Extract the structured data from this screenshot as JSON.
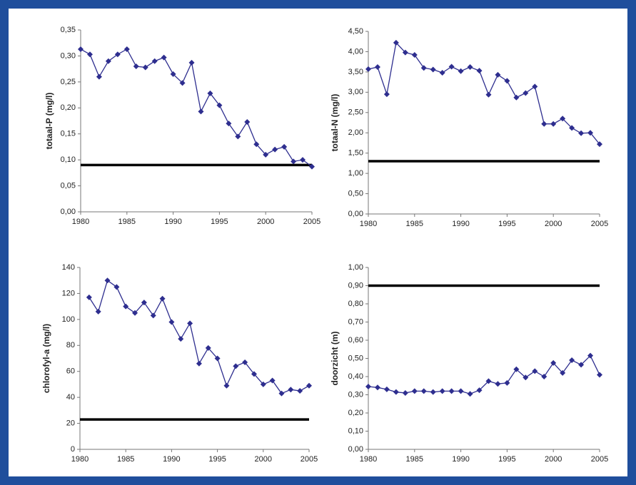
{
  "chart_data": [
    {
      "type": "line",
      "ylabel": "totaal-P (mg/l)",
      "x": [
        1980,
        1981,
        1982,
        1983,
        1984,
        1985,
        1986,
        1987,
        1988,
        1989,
        1990,
        1991,
        1992,
        1993,
        1994,
        1995,
        1996,
        1997,
        1998,
        1999,
        2000,
        2001,
        2002,
        2003,
        2004,
        2005
      ],
      "values": [
        0.313,
        0.303,
        0.26,
        0.29,
        0.303,
        0.313,
        0.28,
        0.278,
        0.29,
        0.297,
        0.265,
        0.248,
        0.287,
        0.193,
        0.228,
        0.205,
        0.17,
        0.145,
        0.173,
        0.13,
        0.11,
        0.12,
        0.125,
        0.097,
        0.1,
        0.087
      ],
      "color": "#2e2e8f",
      "hline": 0.09,
      "hline_color": "#000000",
      "xlim": [
        1980,
        2005
      ],
      "xticks": [
        1980,
        1985,
        1990,
        1995,
        2000,
        2005
      ],
      "ylim": [
        0,
        0.35
      ],
      "yticks": [
        {
          "value": 0,
          "label": "0,00"
        },
        {
          "value": 0.05,
          "label": "0,05"
        },
        {
          "value": 0.1,
          "label": "0,10"
        },
        {
          "value": 0.15,
          "label": "0,15"
        },
        {
          "value": 0.2,
          "label": "0,20"
        },
        {
          "value": 0.25,
          "label": "0,25"
        },
        {
          "value": 0.3,
          "label": "0,30"
        },
        {
          "value": 0.35,
          "label": "0,35"
        }
      ]
    },
    {
      "type": "line",
      "ylabel": "totaal-N (mg/l)",
      "x": [
        1980,
        1981,
        1982,
        1983,
        1984,
        1985,
        1986,
        1987,
        1988,
        1989,
        1990,
        1991,
        1992,
        1993,
        1994,
        1995,
        1996,
        1997,
        1998,
        1999,
        2000,
        2001,
        2002,
        2003,
        2004,
        2005
      ],
      "values": [
        3.57,
        3.62,
        2.95,
        4.22,
        3.98,
        3.92,
        3.6,
        3.56,
        3.48,
        3.63,
        3.52,
        3.62,
        3.53,
        2.94,
        3.43,
        3.28,
        2.87,
        2.98,
        3.14,
        2.22,
        2.22,
        2.35,
        2.12,
        1.99,
        2.0,
        1.72
      ],
      "color": "#2e2e8f",
      "hline": 1.3,
      "hline_color": "#000000",
      "xlim": [
        1980,
        2005
      ],
      "xticks": [
        1980,
        1985,
        1990,
        1995,
        2000,
        2005
      ],
      "ylim": [
        0,
        4.5
      ],
      "yticks": [
        {
          "value": 0,
          "label": "0,00"
        },
        {
          "value": 0.5,
          "label": "0,50"
        },
        {
          "value": 1,
          "label": "1,00"
        },
        {
          "value": 1.5,
          "label": "1,50"
        },
        {
          "value": 2,
          "label": "2,00"
        },
        {
          "value": 2.5,
          "label": "2,50"
        },
        {
          "value": 3,
          "label": "3,00"
        },
        {
          "value": 3.5,
          "label": "3,50"
        },
        {
          "value": 4,
          "label": "4,00"
        },
        {
          "value": 4.5,
          "label": "4,50"
        }
      ]
    },
    {
      "type": "line",
      "ylabel": "chlorofyl-a (mg/l)",
      "x": [
        1981,
        1982,
        1983,
        1984,
        1985,
        1986,
        1987,
        1988,
        1989,
        1990,
        1991,
        1992,
        1993,
        1994,
        1995,
        1996,
        1997,
        1998,
        1999,
        2000,
        2001,
        2002,
        2003,
        2004,
        2005
      ],
      "values": [
        117,
        106,
        130,
        125,
        110,
        105,
        113,
        103,
        116,
        98,
        85,
        97,
        66,
        78,
        70,
        49,
        64,
        67,
        58,
        50,
        53,
        43,
        46,
        45,
        49
      ],
      "color": "#2e2e8f",
      "hline": 23,
      "hline_color": "#000000",
      "xlim": [
        1980,
        2005
      ],
      "xticks": [
        1980,
        1985,
        1990,
        1995,
        2000,
        2005
      ],
      "ylim": [
        0,
        140
      ],
      "yticks": [
        0,
        20,
        40,
        60,
        80,
        100,
        120,
        140
      ]
    },
    {
      "type": "line",
      "ylabel": "doorzicht (m)",
      "x": [
        1980,
        1981,
        1982,
        1983,
        1984,
        1985,
        1986,
        1987,
        1988,
        1989,
        1990,
        1991,
        1992,
        1993,
        1994,
        1995,
        1996,
        1997,
        1998,
        1999,
        2000,
        2001,
        2002,
        2003,
        2004,
        2005
      ],
      "values": [
        0.345,
        0.34,
        0.33,
        0.315,
        0.31,
        0.32,
        0.32,
        0.315,
        0.32,
        0.32,
        0.32,
        0.305,
        0.325,
        0.375,
        0.36,
        0.365,
        0.44,
        0.395,
        0.43,
        0.4,
        0.475,
        0.42,
        0.49,
        0.465,
        0.515,
        0.41
      ],
      "color": "#2e2e8f",
      "hline": 0.9,
      "hline_color": "#000000",
      "xlim": [
        1980,
        2005
      ],
      "xticks": [
        1980,
        1985,
        1990,
        1995,
        2000,
        2005
      ],
      "ylim": [
        0,
        1
      ],
      "yticks": [
        {
          "value": 0,
          "label": "0,00"
        },
        {
          "value": 0.1,
          "label": "0,10"
        },
        {
          "value": 0.2,
          "label": "0,20"
        },
        {
          "value": 0.3,
          "label": "0,30"
        },
        {
          "value": 0.4,
          "label": "0,40"
        },
        {
          "value": 0.5,
          "label": "0,50"
        },
        {
          "value": 0.6,
          "label": "0,60"
        },
        {
          "value": 0.7,
          "label": "0,70"
        },
        {
          "value": 0.8,
          "label": "0,80"
        },
        {
          "value": 0.9,
          "label": "0,90"
        },
        {
          "value": 1,
          "label": "1,00"
        }
      ]
    }
  ]
}
